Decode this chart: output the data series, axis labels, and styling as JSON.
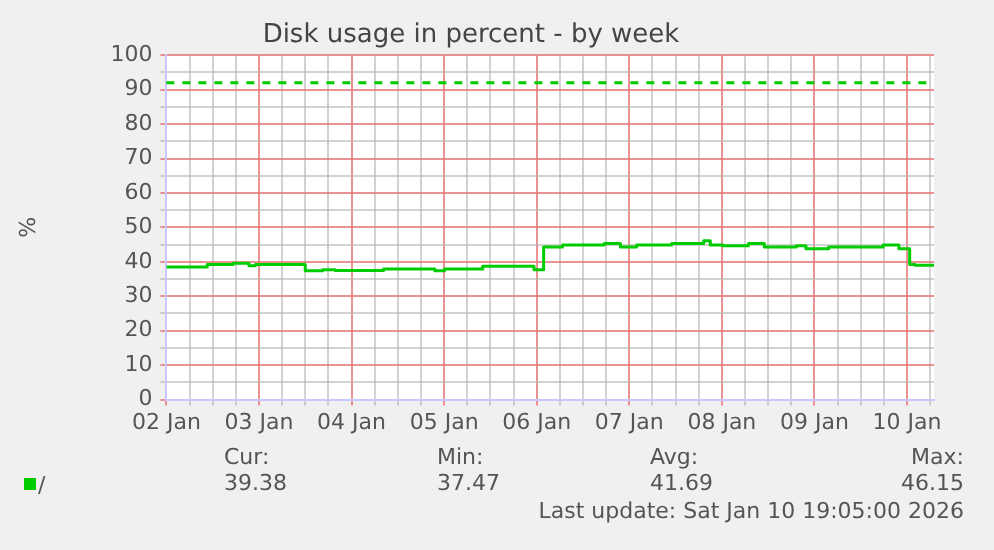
{
  "chart_data": {
    "type": "step",
    "title": "Disk usage in percent - by week",
    "ylabel": "%",
    "xlim": [
      "2026-01-02T00:00",
      "2026-01-10T07:00"
    ],
    "xticks": [
      {
        "value": "2026-01-02",
        "label": "02 Jan"
      },
      {
        "value": "2026-01-02T06:00",
        "label": null
      },
      {
        "value": "2026-01-02T12:00",
        "label": null
      },
      {
        "value": "2026-01-02T18:00",
        "label": null
      },
      {
        "value": "2026-01-03",
        "label": "03 Jan"
      },
      {
        "value": "2026-01-03T06:00",
        "label": null
      },
      {
        "value": "2026-01-03T12:00",
        "label": null
      },
      {
        "value": "2026-01-03T18:00",
        "label": null
      },
      {
        "value": "2026-01-04",
        "label": "04 Jan"
      },
      {
        "value": "2026-01-04T06:00",
        "label": null
      },
      {
        "value": "2026-01-04T12:00",
        "label": null
      },
      {
        "value": "2026-01-04T18:00",
        "label": null
      },
      {
        "value": "2026-01-05",
        "label": "05 Jan"
      },
      {
        "value": "2026-01-05T06:00",
        "label": null
      },
      {
        "value": "2026-01-05T12:00",
        "label": null
      },
      {
        "value": "2026-01-05T18:00",
        "label": null
      },
      {
        "value": "2026-01-06",
        "label": "06 Jan"
      },
      {
        "value": "2026-01-06T06:00",
        "label": null
      },
      {
        "value": "2026-01-06T12:00",
        "label": null
      },
      {
        "value": "2026-01-06T18:00",
        "label": null
      },
      {
        "value": "2026-01-07",
        "label": "07 Jan"
      },
      {
        "value": "2026-01-07T06:00",
        "label": null
      },
      {
        "value": "2026-01-07T12:00",
        "label": null
      },
      {
        "value": "2026-01-07T18:00",
        "label": null
      },
      {
        "value": "2026-01-08",
        "label": "08 Jan"
      },
      {
        "value": "2026-01-08T06:00",
        "label": null
      },
      {
        "value": "2026-01-08T12:00",
        "label": null
      },
      {
        "value": "2026-01-08T18:00",
        "label": null
      },
      {
        "value": "2026-01-09",
        "label": "09 Jan"
      },
      {
        "value": "2026-01-09T06:00",
        "label": null
      },
      {
        "value": "2026-01-09T12:00",
        "label": null
      },
      {
        "value": "2026-01-09T18:00",
        "label": null
      },
      {
        "value": "2026-01-10",
        "label": "10 Jan"
      },
      {
        "value": "2026-01-10T06:00",
        "label": null
      }
    ],
    "ylim": [
      0,
      100
    ],
    "yticks": [
      0,
      {
        "value": 5,
        "label": null
      },
      10,
      {
        "value": 15,
        "label": null
      },
      20,
      {
        "value": 25,
        "label": null
      },
      30,
      {
        "value": 35,
        "label": null
      },
      40,
      {
        "value": 45,
        "label": null
      },
      50,
      {
        "value": 55,
        "label": null
      },
      60,
      {
        "value": 65,
        "label": null
      },
      70,
      {
        "value": 75,
        "label": null
      },
      80,
      {
        "value": 85,
        "label": null
      },
      90,
      {
        "value": 95,
        "label": null
      },
      100
    ],
    "grid": true,
    "legend": "bottom",
    "series": [
      {
        "name": "/",
        "color": "#00cc00",
        "x": [
          "2026-01-02T00:00",
          "2026-01-02T10:36",
          "2026-01-02T17:18",
          "2026-01-02T21:24",
          "2026-01-02T23:06",
          "2026-01-03T12:00",
          "2026-01-03T16:30",
          "2026-01-03T19:48",
          "2026-01-04T08:18",
          "2026-01-04T21:36",
          "2026-01-05T00:06",
          "2026-01-05T10:00",
          "2026-01-05T23:18",
          "2026-01-06T01:48",
          "2026-01-06T06:42",
          "2026-01-06T17:30",
          "2026-01-06T21:42",
          "2026-01-07T01:54",
          "2026-01-07T11:00",
          "2026-01-07T19:18",
          "2026-01-07T21:00",
          "2026-01-08T00:18",
          "2026-01-08T06:54",
          "2026-01-08T11:00",
          "2026-01-08T19:18",
          "2026-01-08T21:48",
          "2026-01-09T03:42",
          "2026-01-09T17:48",
          "2026-01-09T21:54",
          "2026-01-10T00:42",
          "2026-01-10T02:06",
          "2026-01-10T07:00"
        ],
        "values": [
          38.5,
          39.2,
          39.6,
          38.9,
          39.2,
          37.4,
          37.7,
          37.5,
          37.9,
          37.4,
          37.9,
          38.7,
          37.7,
          44.3,
          44.9,
          45.3,
          44.3,
          44.9,
          45.3,
          46.1,
          44.9,
          44.7,
          45.3,
          44.3,
          44.7,
          43.8,
          44.3,
          44.9,
          43.8,
          39.2,
          39.0,
          39.0
        ]
      }
    ],
    "ref_lines": [
      {
        "axis": "y",
        "value": 92,
        "color": "#00cc00",
        "line_style": "dashed"
      }
    ],
    "annotations": [
      "Cur:",
      "Min:",
      "Avg:",
      "Max:",
      "39.38",
      "37.47",
      "41.69",
      "46.15",
      "Last update: Sat Jan 10 19:05:00 2026"
    ]
  }
}
